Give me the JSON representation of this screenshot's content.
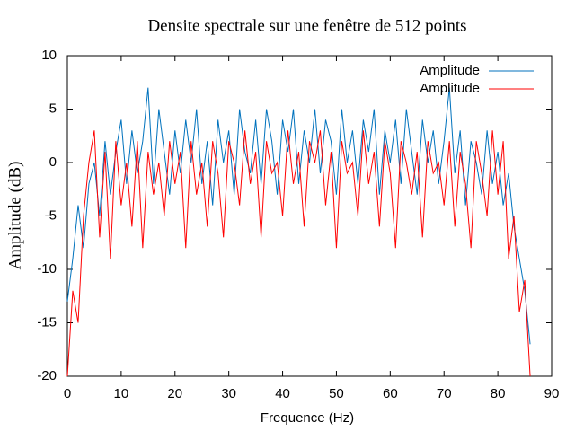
{
  "chart_data": {
    "type": "line",
    "title": "Densite spectrale sur une fenêtre de 512 points",
    "x_label": "Frequence (Hz)",
    "y_label": "Amplitude (dB)",
    "xlim": [
      0,
      90
    ],
    "xticks": [
      0,
      10,
      20,
      30,
      40,
      50,
      60,
      70,
      80,
      90
    ],
    "ylim": [
      -20,
      10
    ],
    "yticks": [
      -20,
      -15,
      -10,
      -5,
      0,
      5,
      10
    ],
    "legend": "top-right",
    "x": [
      0,
      1,
      2,
      3,
      4,
      5,
      6,
      7,
      8,
      9,
      10,
      11,
      12,
      13,
      14,
      15,
      16,
      17,
      18,
      19,
      20,
      21,
      22,
      23,
      24,
      25,
      26,
      27,
      28,
      29,
      30,
      31,
      32,
      33,
      34,
      35,
      36,
      37,
      38,
      39,
      40,
      41,
      42,
      43,
      44,
      45,
      46,
      47,
      48,
      49,
      50,
      51,
      52,
      53,
      54,
      55,
      56,
      57,
      58,
      59,
      60,
      61,
      62,
      63,
      64,
      65,
      66,
      67,
      68,
      69,
      70,
      71,
      72,
      73,
      74,
      75,
      76,
      77,
      78,
      79,
      80,
      81,
      82,
      83,
      84,
      85,
      86
    ],
    "series": [
      {
        "name": "Amplitude",
        "color": "#0072bd",
        "values": [
          -13,
          -9,
          -4,
          -8,
          -2,
          0,
          -5,
          2,
          -3,
          1,
          4,
          -2,
          3,
          -1,
          2,
          7,
          -2,
          5,
          1,
          -3,
          3,
          -1,
          4,
          0,
          5,
          -2,
          2,
          -4,
          4,
          0,
          3,
          -3,
          5,
          1,
          -1,
          4,
          -2,
          5,
          2,
          -3,
          4,
          1,
          5,
          -2,
          3,
          0,
          5,
          -1,
          4,
          2,
          -3,
          5,
          0,
          3,
          -2,
          4,
          1,
          5,
          -3,
          3,
          0,
          4,
          -2,
          5,
          1,
          -3,
          4,
          0,
          3,
          -2,
          2,
          7,
          -1,
          3,
          -4,
          2,
          0,
          -3,
          3,
          -2,
          1,
          -4,
          -1,
          -6,
          -9,
          -12,
          -17
        ]
      },
      {
        "name": "Amplitude",
        "color": "#ff0000",
        "values": [
          -20,
          -12,
          -15,
          -5,
          0,
          3,
          -7,
          1,
          -9,
          2,
          -4,
          0,
          -6,
          2,
          -8,
          1,
          -3,
          0,
          -5,
          2,
          -2,
          1,
          -8,
          2,
          -3,
          0,
          -6,
          2,
          -1,
          -7,
          2,
          0,
          -4,
          3,
          -2,
          1,
          -7,
          2,
          -1,
          0,
          -5,
          3,
          -2,
          1,
          -6,
          2,
          0,
          3,
          -4,
          1,
          -8,
          2,
          -1,
          0,
          -5,
          3,
          -2,
          1,
          -6,
          2,
          -1,
          -8,
          2,
          0,
          -3,
          1,
          -7,
          2,
          -1,
          0,
          -4,
          2,
          -6,
          1,
          -2,
          -8,
          2,
          -1,
          -5,
          3,
          -3,
          2,
          -9,
          -5,
          -14,
          -11,
          -20
        ]
      }
    ]
  }
}
